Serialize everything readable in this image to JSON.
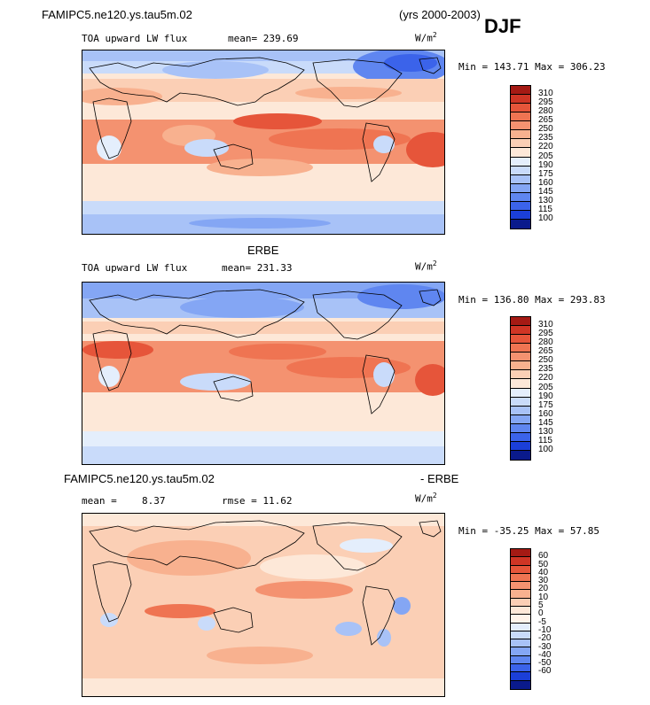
{
  "header": {
    "case_name": "FAMIPC5.ne120.ys.tau5m.02",
    "years": "(yrs 2000-2003)",
    "season": "DJF"
  },
  "panels": [
    {
      "variable": "TOA upward LW flux",
      "mean_text": "mean= 239.69",
      "units_base": "W/m",
      "units_exp": "2",
      "minmax": "Min = 143.71 Max = 306.23",
      "palette": [
        "#0a1a8c",
        "#1b3fd8",
        "#3b63ea",
        "#5f86f0",
        "#84a6f4",
        "#a8c2f7",
        "#c9dbfa",
        "#e4eefc",
        "#fde8d8",
        "#fbcfb5",
        "#f8b18f",
        "#f49270",
        "#ef7452",
        "#e6553a",
        "#cf3525",
        "#a51a14"
      ],
      "ticks": [
        "310",
        "295",
        "280",
        "265",
        "250",
        "235",
        "220",
        "205",
        "190",
        "175",
        "160",
        "145",
        "130",
        "115",
        "100"
      ]
    },
    {
      "title": "ERBE",
      "variable": "TOA upward LW flux",
      "mean_text": "mean= 231.33",
      "units_base": "W/m",
      "units_exp": "2",
      "minmax": "Min = 136.80 Max = 293.83",
      "palette": [
        "#0a1a8c",
        "#1b3fd8",
        "#3b63ea",
        "#5f86f0",
        "#84a6f4",
        "#a8c2f7",
        "#c9dbfa",
        "#e4eefc",
        "#fde8d8",
        "#fbcfb5",
        "#f8b18f",
        "#f49270",
        "#ef7452",
        "#e6553a",
        "#cf3525",
        "#a51a14"
      ],
      "ticks": [
        "310",
        "295",
        "280",
        "265",
        "250",
        "235",
        "220",
        "205",
        "190",
        "175",
        "160",
        "145",
        "130",
        "115",
        "100"
      ]
    },
    {
      "title_left": "FAMIPC5.ne120.ys.tau5m.02",
      "title_right": "- ERBE",
      "mean_label": "mean =",
      "mean_value": "8.37",
      "rmse_text": "rmse =  11.62",
      "units_base": "W/m",
      "units_exp": "2",
      "minmax": "Min = -35.25 Max =  57.85",
      "palette": [
        "#0a1a8c",
        "#1b3fd8",
        "#3b63ea",
        "#5f86f0",
        "#84a6f4",
        "#a8c2f7",
        "#c9dbfa",
        "#e4eefc",
        "#fff4ea",
        "#fde8d8",
        "#fbcfb5",
        "#f8b18f",
        "#f49270",
        "#ef7452",
        "#e6553a",
        "#cf3525",
        "#a51a14"
      ],
      "ticks": [
        "60",
        "50",
        "40",
        "30",
        "20",
        "10",
        "5",
        "0",
        "-5",
        "-10",
        "-20",
        "-30",
        "-40",
        "-50",
        "-60"
      ]
    }
  ],
  "chart_data": [
    {
      "type": "heatmap",
      "title": "TOA upward LW flux",
      "units": "W/m2",
      "mean": 239.69,
      "min": 143.71,
      "max": 306.23,
      "levels": [
        100,
        115,
        130,
        145,
        160,
        175,
        190,
        205,
        220,
        235,
        250,
        265,
        280,
        295,
        310
      ]
    },
    {
      "type": "heatmap",
      "title": "ERBE",
      "units": "W/m2",
      "mean": 231.33,
      "min": 136.8,
      "max": 293.83,
      "levels": [
        100,
        115,
        130,
        145,
        160,
        175,
        190,
        205,
        220,
        235,
        250,
        265,
        280,
        295,
        310
      ]
    },
    {
      "type": "heatmap",
      "title": "FAMIPC5.ne120.ys.tau5m.02 - ERBE",
      "units": "W/m2",
      "mean": 8.37,
      "rmse": 11.62,
      "min": -35.25,
      "max": 57.85,
      "levels": [
        -60,
        -50,
        -40,
        -30,
        -20,
        -10,
        -5,
        0,
        5,
        10,
        20,
        30,
        40,
        50,
        60
      ]
    }
  ]
}
